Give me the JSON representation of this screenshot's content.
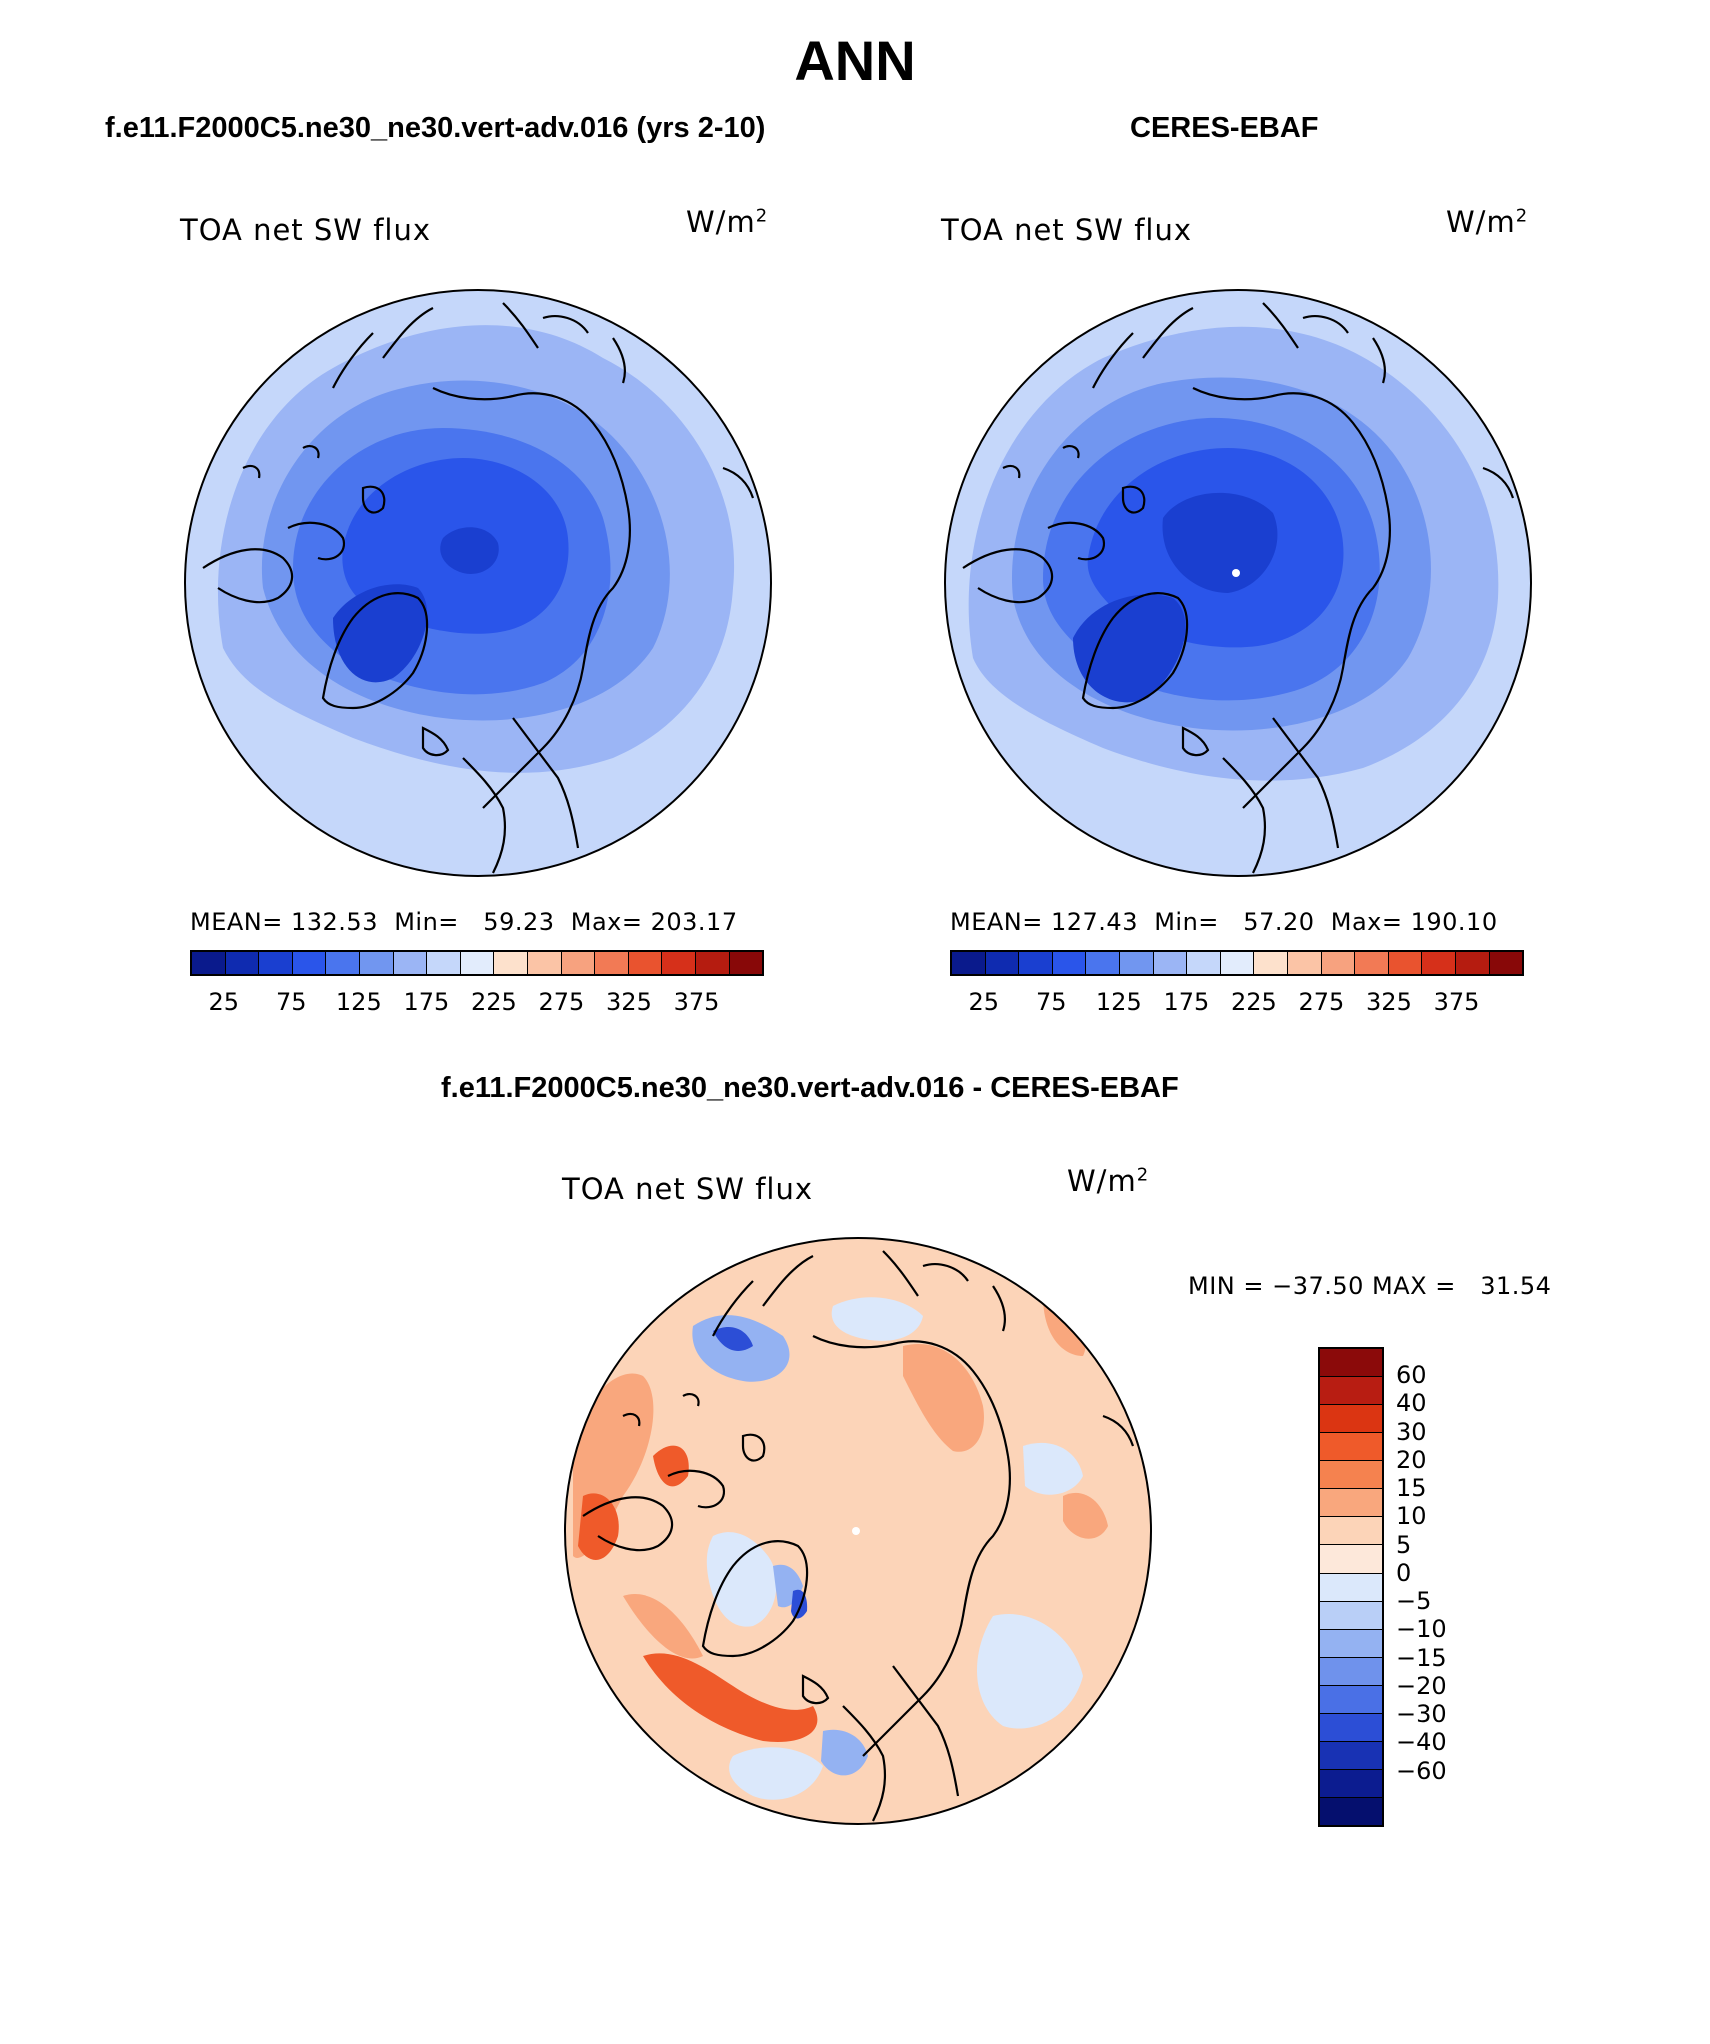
{
  "title": "ANN",
  "panels": [
    {
      "case_title": "f.e11.F2000C5.ne30_ne30.vert-adv.016 (yrs 2-10)",
      "label": "TOA net SW flux",
      "units_base": "W/m",
      "units_exp": "2",
      "stats": "MEAN= 132.53  Min=   59.23  Max= 203.17",
      "mean": 132.53,
      "min": 59.23,
      "max": 203.17
    },
    {
      "case_title": "CERES-EBAF",
      "label": "TOA net SW flux",
      "units_base": "W/m",
      "units_exp": "2",
      "stats": "MEAN= 127.43  Min=   57.20  Max= 190.10",
      "mean": 127.43,
      "min": 57.2,
      "max": 190.1
    }
  ],
  "abs_colorbar": {
    "colors": [
      "#0a1a8c",
      "#0f2bb0",
      "#1a3fd0",
      "#2a55ea",
      "#4a75ee",
      "#7196f0",
      "#9bb5f5",
      "#c5d7fa",
      "#e2ecfc",
      "#fde1cc",
      "#fbc4a6",
      "#f7a27f",
      "#f27a55",
      "#e9532f",
      "#d6301a",
      "#b51c10",
      "#880808"
    ],
    "ticks": [
      "25",
      "75",
      "125",
      "175",
      "225",
      "275",
      "325",
      "375"
    ]
  },
  "diff_panel": {
    "case_title": "f.e11.F2000C5.ne30_ne30.vert-adv.016 - CERES-EBAF",
    "label": "TOA net SW flux",
    "units_base": "W/m",
    "units_exp": "2",
    "minmax": "MIN = −37.50 MAX =   31.54",
    "min": -37.5,
    "max": 31.54
  },
  "diff_colorbar": {
    "colors": [
      "#8b0a0a",
      "#b81d12",
      "#db3512",
      "#ef5a2a",
      "#f5824f",
      "#f9a77d",
      "#fcd4b8",
      "#fde8da",
      "#dbe8fb",
      "#b9cff7",
      "#94b2f2",
      "#6f92ec",
      "#4a70e6",
      "#2c4ed6",
      "#1832b4",
      "#0c1c90",
      "#050f6e"
    ],
    "ticks": [
      "60",
      "40",
      "30",
      "20",
      "15",
      "10",
      "5",
      "0",
      "−5",
      "−10",
      "−15",
      "−20",
      "−30",
      "−40",
      "−60"
    ]
  },
  "map_colors": {
    "blue_light": "#c5d7fa",
    "blue_mid1": "#9bb5f5",
    "blue_mid2": "#7196f0",
    "blue_mid3": "#4a75ee",
    "blue_dark": "#2a55ea",
    "blue_deep": "#1a3fd0",
    "diff_light_orange": "#fcd4b8",
    "diff_orange": "#f9a77d",
    "diff_dark_orange": "#ef5a2a",
    "diff_light_blue": "#dbe8fb",
    "diff_blue": "#94b2f2",
    "diff_dark_blue": "#2c4ed6",
    "coastline": "#000000"
  }
}
